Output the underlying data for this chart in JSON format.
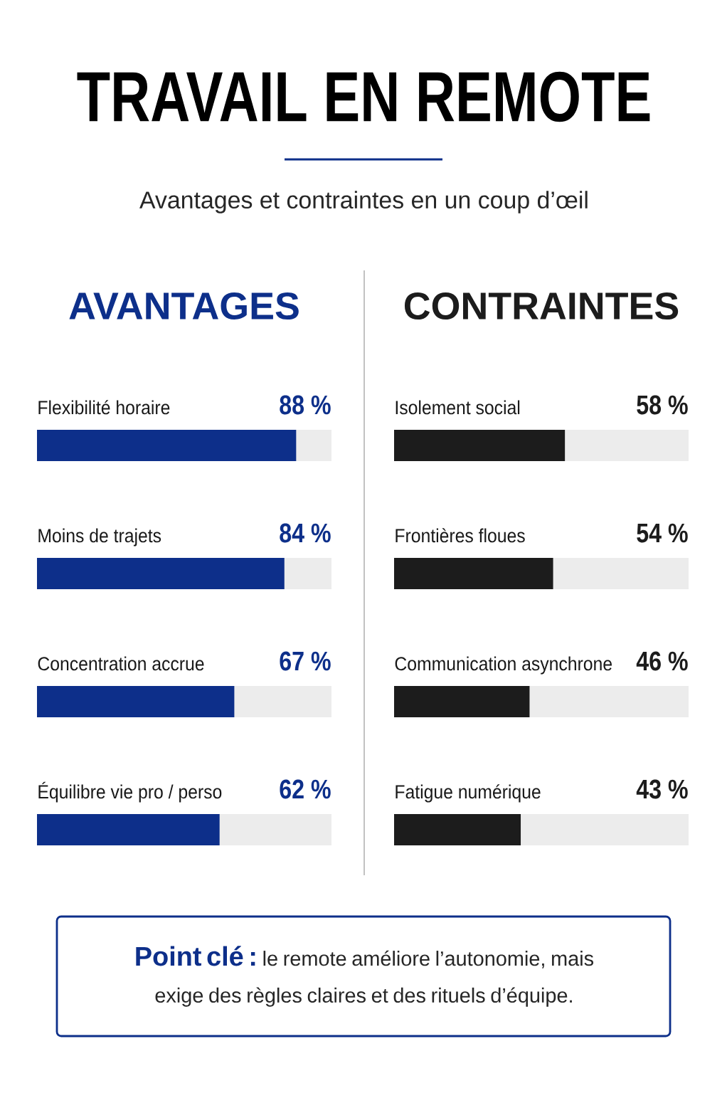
{
  "chart_data": [
    {
      "type": "other",
      "title": "TRAVAIL EN REMOTE",
      "subtitle": "Avantages et contraintes en un coup d’œil"
    },
    {
      "type": "bar",
      "orientation": "horizontal",
      "title": "AVANTAGES",
      "color": "#0d2f8a",
      "categories": [
        "Flexibilité horaire",
        "Moins de trajets",
        "Concentration accrue",
        "Équilibre vie pro / perso"
      ],
      "values": [
        88,
        84,
        67,
        62
      ],
      "value_labels": [
        "88 %",
        "84 %",
        "67 %",
        "62 %"
      ],
      "xlim": [
        0,
        100
      ]
    },
    {
      "type": "bar",
      "orientation": "horizontal",
      "title": "CONTRAINTES",
      "color": "#1c1c1c",
      "categories": [
        "Isolement social",
        "Frontières floues",
        "Communication asynchrone",
        "Fatigue numérique"
      ],
      "values": [
        58,
        54,
        46,
        43
      ],
      "value_labels": [
        "58 %",
        "54 %",
        "46 %",
        "43 %"
      ],
      "xlim": [
        0,
        100
      ]
    },
    {
      "type": "other",
      "annotations": [
        "Point clé :",
        "le remote améliore l’autonomie, mais exige des règles claires et des rituels d’équipe."
      ]
    }
  ]
}
